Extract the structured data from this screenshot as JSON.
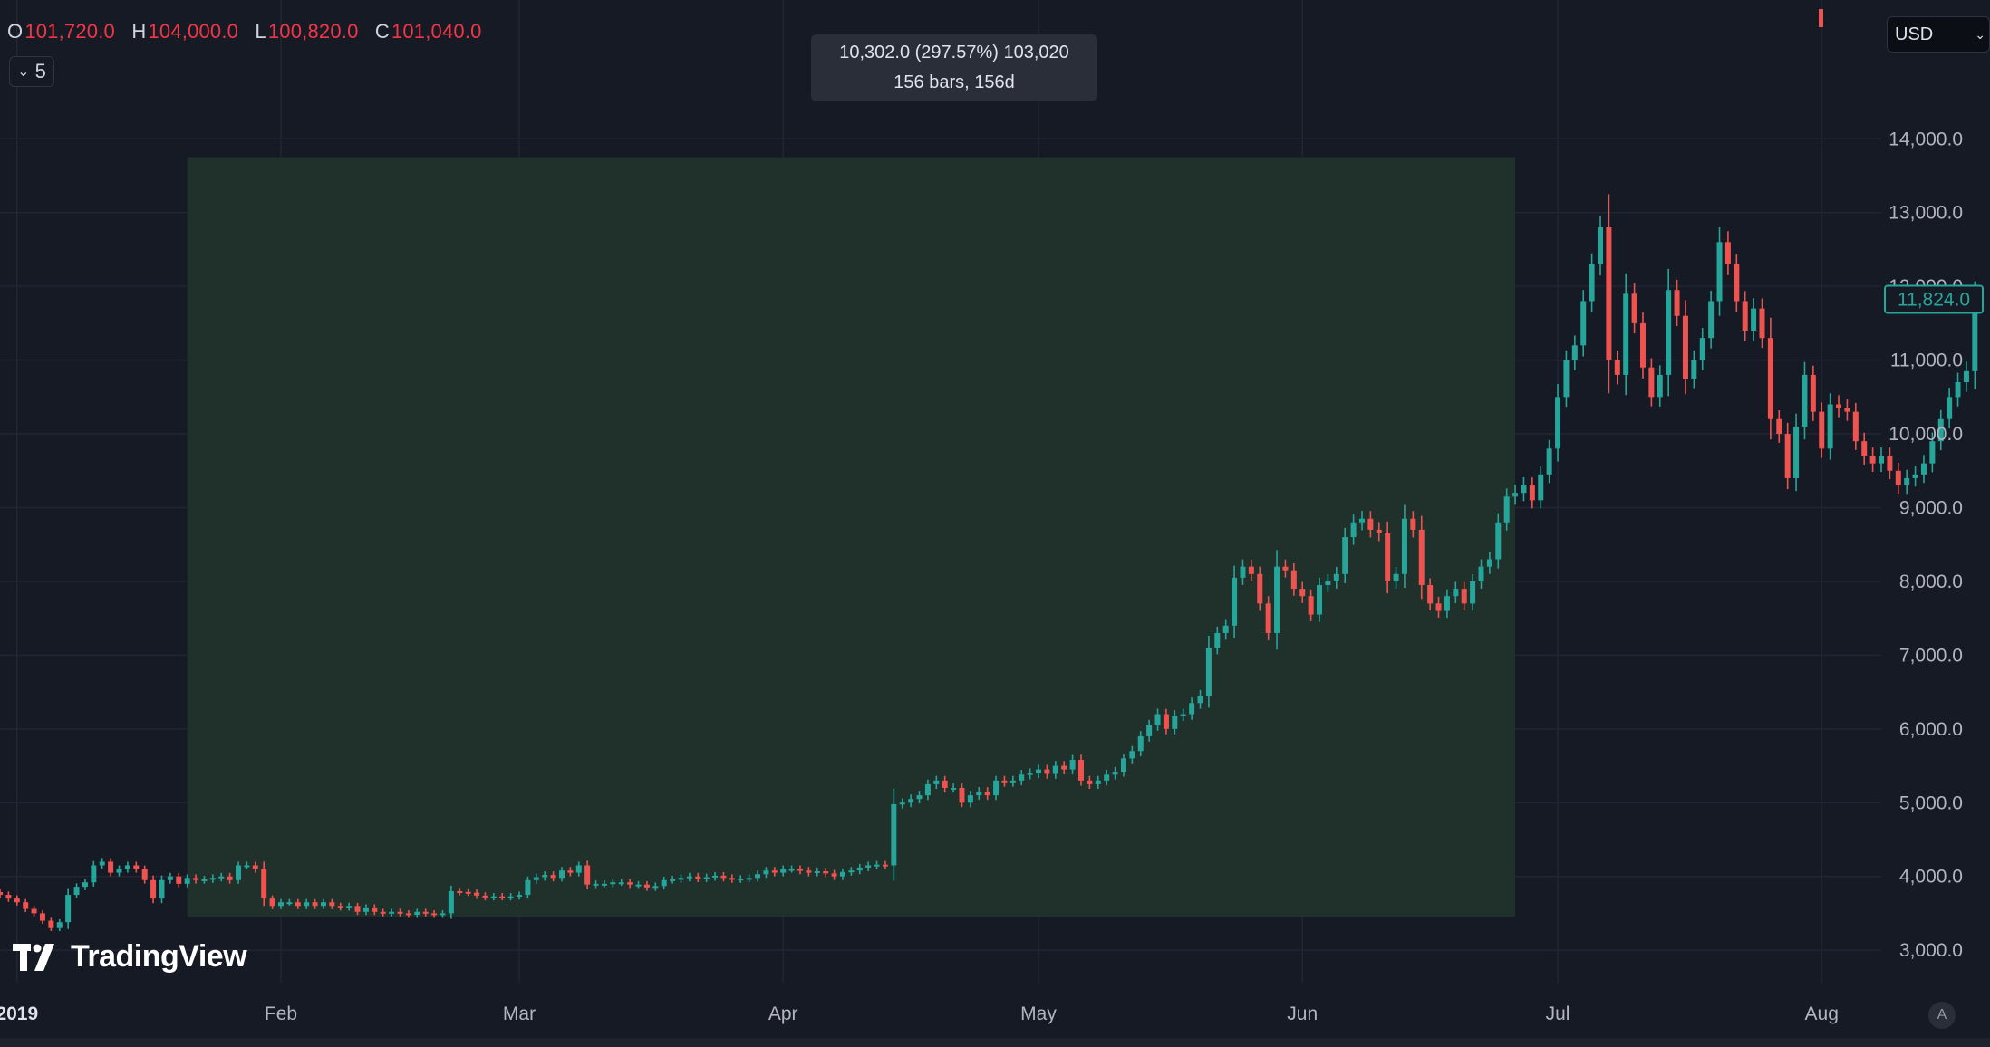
{
  "legend": {
    "open_key": "O",
    "open": "101,720.0",
    "high_key": "H",
    "high": "104,000.0",
    "low_key": "L",
    "low": "100,820.0",
    "close_key": "C",
    "close": "101,040.0",
    "collapse_count": "5"
  },
  "currency": "USD",
  "last_price": "11,824.0",
  "measure": {
    "line1": "10,302.0 (297.57%) 103,020",
    "line2": "156 bars, 156d",
    "start_date": "2019-01-21",
    "end_date": "2019-06-26",
    "low": 3450,
    "high": 13750
  },
  "brand": "TradingView",
  "auto_label": "A",
  "colors": {
    "background": "#161a25",
    "up": "#26a69a",
    "down": "#ef5350",
    "grid": "#222634",
    "measure_fill": "#20302b",
    "text": "#d1d4dc"
  },
  "chart_data": {
    "type": "candlestick",
    "x_range": [
      "2018-12-30",
      "2019-08-08"
    ],
    "y_range": [
      2400,
      14900
    ],
    "y_ticks": [
      {
        "value": 3000,
        "label": "3,000.0"
      },
      {
        "value": 4000,
        "label": "4,000.0"
      },
      {
        "value": 5000,
        "label": "5,000.0"
      },
      {
        "value": 6000,
        "label": "6,000.0"
      },
      {
        "value": 7000,
        "label": "7,000.0"
      },
      {
        "value": 8000,
        "label": "8,000.0"
      },
      {
        "value": 9000,
        "label": "9,000.0"
      },
      {
        "value": 10000,
        "label": "10,000.0"
      },
      {
        "value": 11000,
        "label": "11,000.0"
      },
      {
        "value": 12000,
        "label": "12,000.0"
      },
      {
        "value": 13000,
        "label": "13,000.0"
      },
      {
        "value": 14000,
        "label": "14,000.0"
      }
    ],
    "x_ticks": [
      {
        "date": "2019-01-01",
        "label": "2019",
        "bold": true
      },
      {
        "date": "2019-02-01",
        "label": "Feb"
      },
      {
        "date": "2019-03-01",
        "label": "Mar"
      },
      {
        "date": "2019-04-01",
        "label": "Apr"
      },
      {
        "date": "2019-05-01",
        "label": "May"
      },
      {
        "date": "2019-06-01",
        "label": "Jun"
      },
      {
        "date": "2019-07-01",
        "label": "Jul"
      },
      {
        "date": "2019-08-01",
        "label": "Aug"
      }
    ],
    "start_date": "2018-12-30",
    "closes": [
      3750,
      3700,
      3650,
      3560,
      3500,
      3400,
      3300,
      3380,
      3750,
      3860,
      3920,
      4150,
      4200,
      4050,
      4100,
      4150,
      4100,
      3950,
      3700,
      3950,
      4000,
      3900,
      3980,
      3950,
      3960,
      3980,
      4000,
      3950,
      4150,
      4150,
      4100,
      3700,
      3600,
      3650,
      3650,
      3600,
      3650,
      3600,
      3650,
      3600,
      3580,
      3600,
      3520,
      3580,
      3520,
      3500,
      3520,
      3500,
      3480,
      3520,
      3500,
      3480,
      3500,
      3800,
      3790,
      3780,
      3740,
      3720,
      3730,
      3720,
      3730,
      3750,
      3950,
      3990,
      4020,
      3980,
      4080,
      4050,
      4150,
      3890,
      3900,
      3900,
      3920,
      3920,
      3890,
      3890,
      3850,
      3870,
      3950,
      3960,
      3980,
      4000,
      3970,
      3990,
      4010,
      3980,
      3960,
      3970,
      3980,
      4030,
      4080,
      4050,
      4100,
      4100,
      4080,
      4050,
      4070,
      4040,
      4000,
      4060,
      4080,
      4120,
      4150,
      4160,
      4150,
      4980,
      5000,
      5050,
      5100,
      5250,
      5300,
      5200,
      5200,
      5000,
      5100,
      5150,
      5100,
      5300,
      5280,
      5300,
      5380,
      5400,
      5450,
      5390,
      5500,
      5450,
      5580,
      5300,
      5250,
      5300,
      5380,
      5420,
      5600,
      5700,
      5900,
      6050,
      6200,
      6000,
      6180,
      6200,
      6350,
      6450,
      7100,
      7300,
      7400,
      8050,
      8200,
      8100,
      7700,
      7300,
      8200,
      8150,
      7900,
      7800,
      7550,
      7950,
      8000,
      8100,
      8600,
      8800,
      8850,
      8700,
      8650,
      8000,
      8100,
      8850,
      8700,
      7950,
      7700,
      7600,
      7800,
      7900,
      7700,
      8000,
      8200,
      8300,
      8800,
      9150,
      9200,
      9300,
      9100,
      9450,
      9800,
      10500,
      11000,
      11200,
      11800,
      12300,
      12800,
      11000,
      10800,
      11900,
      11500,
      10900,
      10500,
      10800,
      11950,
      11600,
      10750,
      11000,
      11300,
      11800,
      12600,
      12300,
      11800,
      11400,
      11700,
      11300,
      10200,
      10000,
      9400,
      10100,
      10800,
      10300,
      9800,
      10400,
      10350,
      10300,
      9900,
      9700,
      9600,
      9700,
      9500,
      9300,
      9400,
      9450,
      9600,
      9900,
      10200,
      10500,
      10700,
      10850,
      11824
    ]
  }
}
